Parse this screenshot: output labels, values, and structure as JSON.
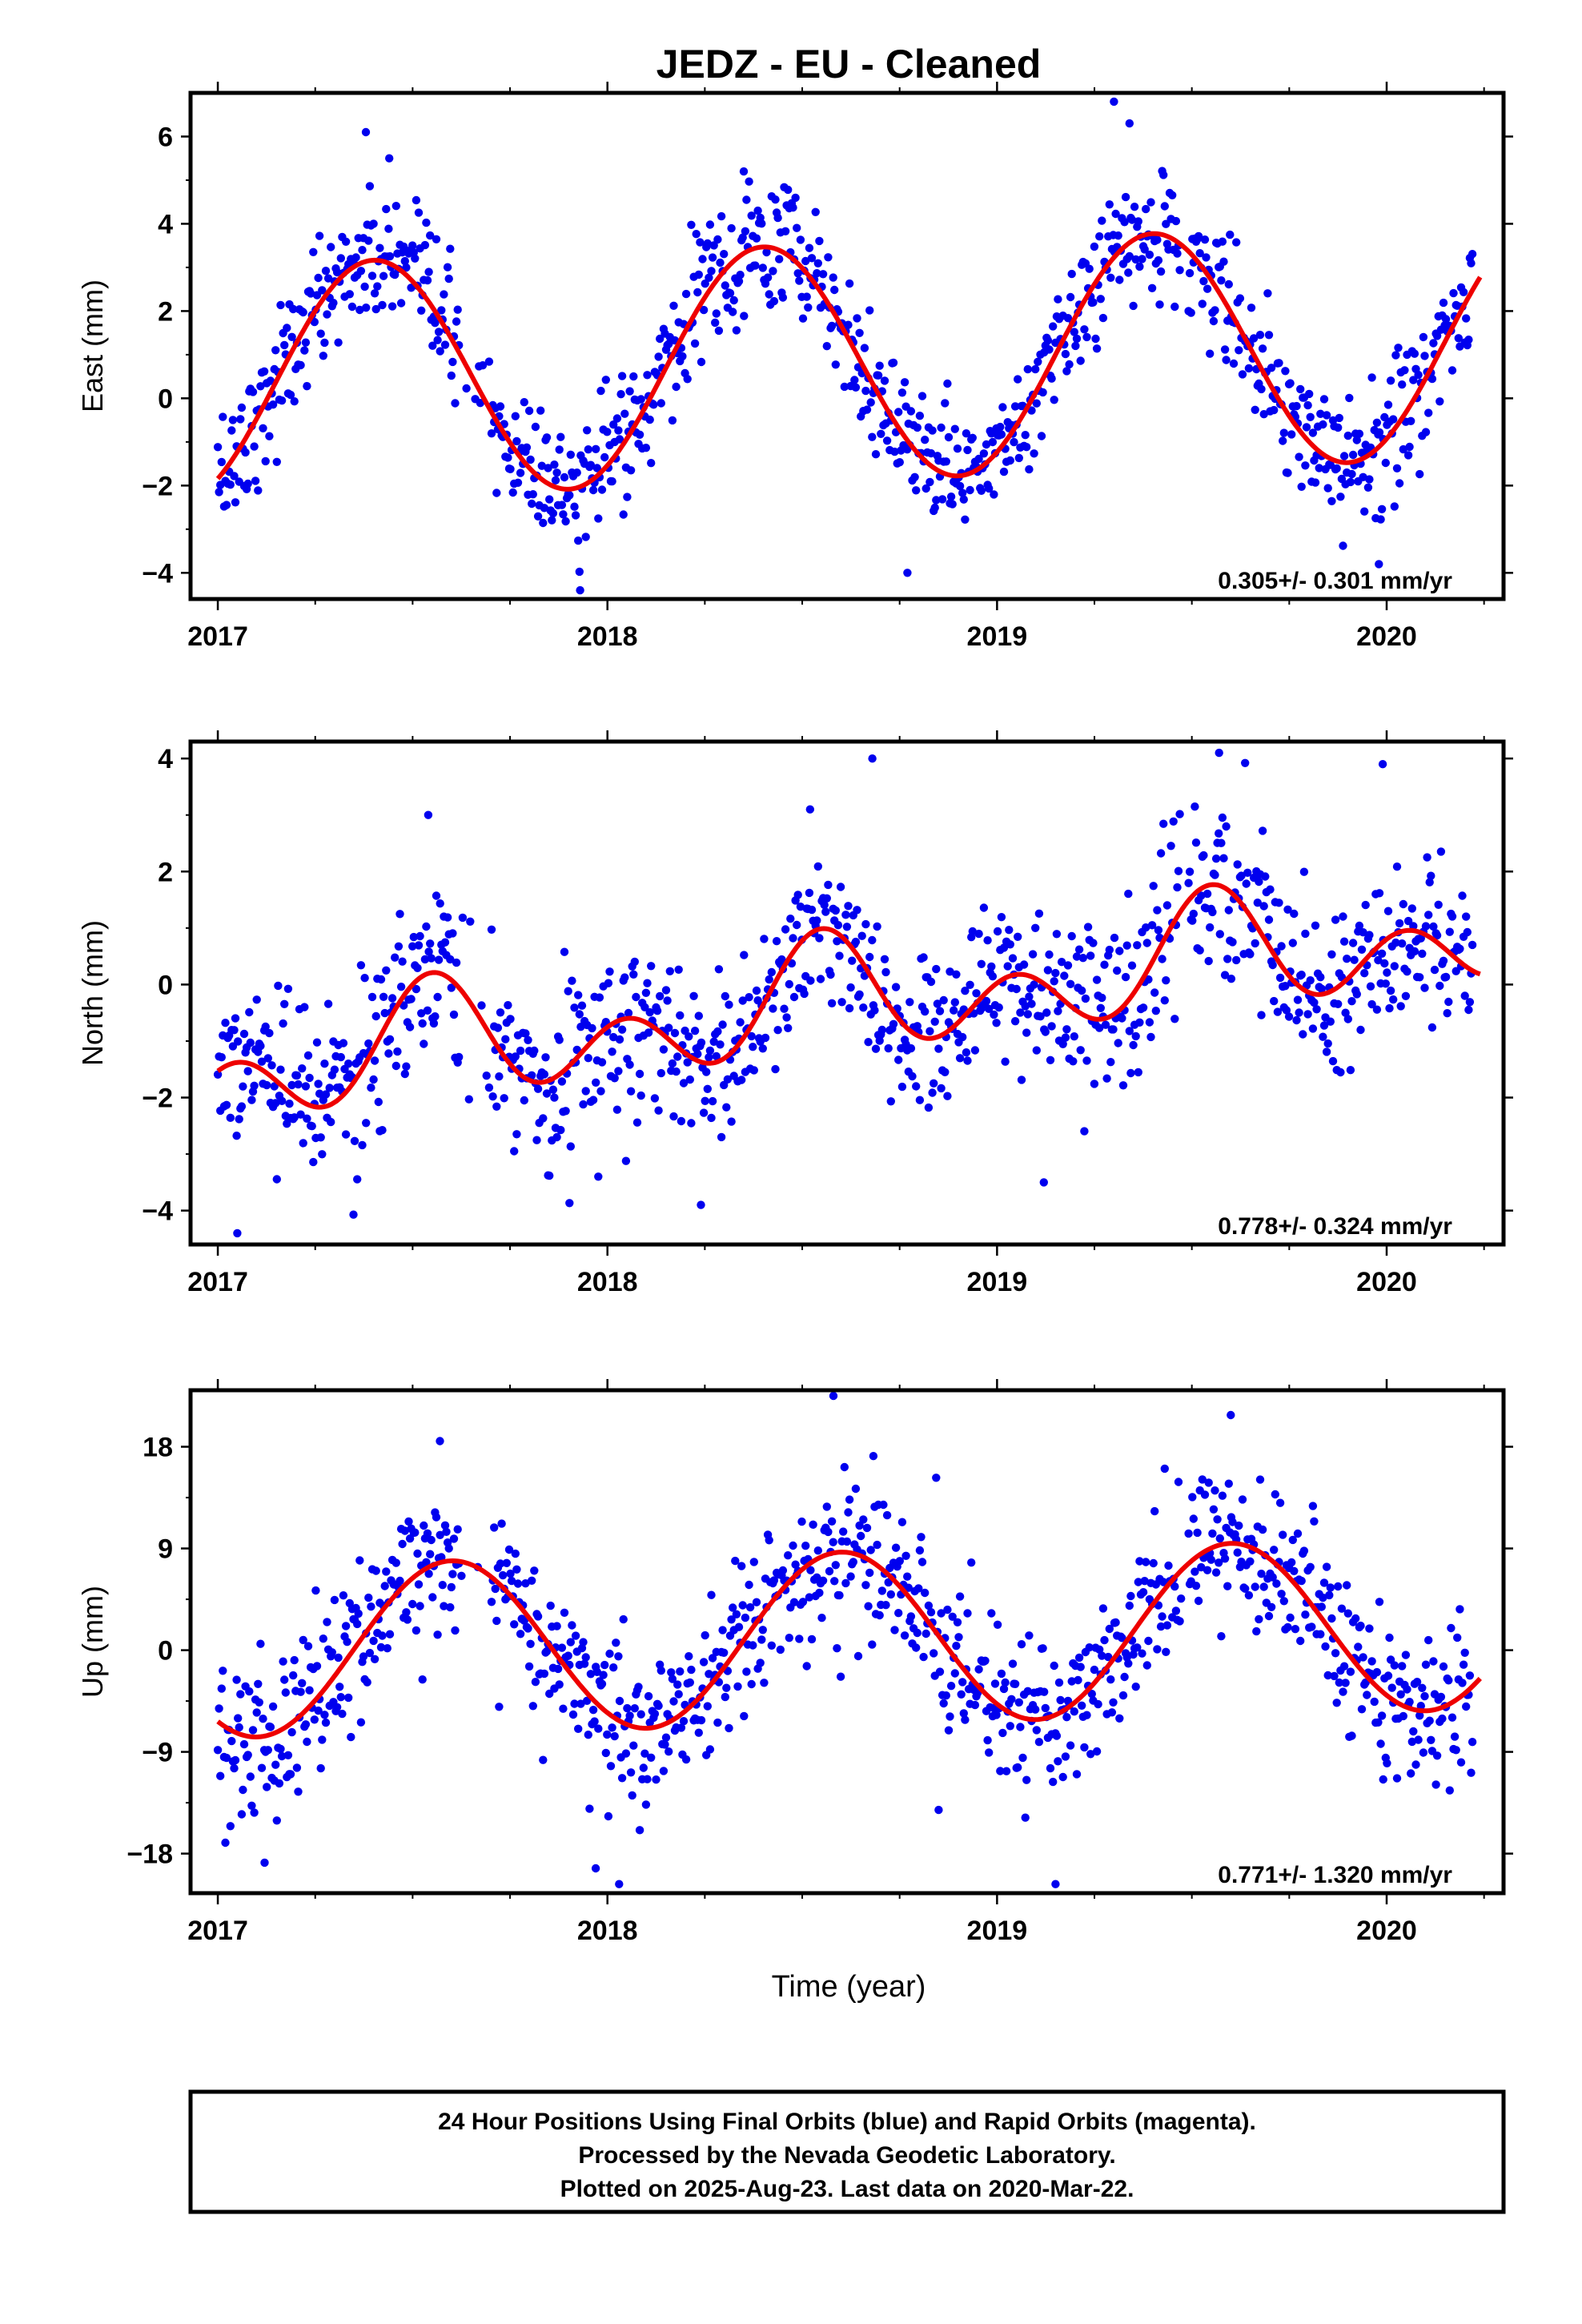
{
  "title": "JEDZ  - EU - Cleaned",
  "xlabel": "Time (year)",
  "caption": [
    "24 Hour Positions Using Final Orbits (blue) and Rapid Orbits (magenta).",
    "Processed by the Nevada Geodetic Laboratory.",
    "Plotted on 2025-Aug-23. Last data on 2020-Mar-22."
  ],
  "colors": {
    "points": "#0000ee",
    "fit": "#ee0000",
    "frame": "#000000"
  },
  "chart_data": [
    {
      "type": "scatter",
      "ylabel": "East (mm)",
      "rate": "0.305+/- 0.301 mm/yr",
      "xlim": [
        2016.93,
        2020.3
      ],
      "ylim": [
        -4.6,
        7.0
      ],
      "yticks": [
        -4,
        -2,
        0,
        2,
        4,
        6
      ],
      "xticks": [
        2017,
        2018,
        2019,
        2020
      ],
      "fit": {
        "offset": 0.8,
        "rate": 0.305,
        "t0": 2018.5,
        "annual_amp": 2.7,
        "annual_peak": 2017.4,
        "semi_amp": 0.0,
        "semi_peak": 2017.4
      },
      "noise_sd": 0.75,
      "outliers": [
        [
          2017.38,
          6.1
        ],
        [
          2017.44,
          5.5
        ],
        [
          2018.35,
          5.2
        ],
        [
          2019.3,
          6.8
        ],
        [
          2019.34,
          6.3
        ],
        [
          2017.93,
          -4.4
        ],
        [
          2018.77,
          -4.0
        ],
        [
          2019.98,
          -3.8
        ]
      ]
    },
    {
      "type": "scatter",
      "ylabel": "North (mm)",
      "rate": "0.778+/- 0.324 mm/yr",
      "xlim": [
        2016.93,
        2020.3
      ],
      "ylim": [
        -4.6,
        4.3
      ],
      "yticks": [
        -4,
        -2,
        0,
        2,
        4
      ],
      "xticks": [
        2017,
        2018,
        2019,
        2020
      ],
      "fit": {
        "offset": -0.4,
        "rate": 0.778,
        "t0": 2018.5,
        "annual_amp": 0.6,
        "annual_peak": 2017.55,
        "semi_amp": 0.75,
        "semi_peak": 2017.55
      },
      "noise_sd": 0.75,
      "outliers": [
        [
          2017.54,
          3.0
        ],
        [
          2018.52,
          3.1
        ],
        [
          2018.68,
          4.0
        ],
        [
          2019.57,
          4.1
        ],
        [
          2019.99,
          3.9
        ],
        [
          2017.05,
          -4.4
        ],
        [
          2018.24,
          -3.9
        ],
        [
          2019.12,
          -3.5
        ]
      ]
    },
    {
      "type": "scatter",
      "ylabel": "Up (mm)",
      "rate": "0.771+/- 1.320 mm/yr",
      "xlim": [
        2016.93,
        2020.3
      ],
      "ylim": [
        -21.5,
        23.0
      ],
      "yticks": [
        -18,
        -9,
        0,
        9,
        18
      ],
      "xticks": [
        2017,
        2018,
        2019,
        2020
      ],
      "fit": {
        "offset": 1.0,
        "rate": 0.771,
        "t0": 2018.5,
        "annual_amp": 7.6,
        "annual_peak": 2017.6,
        "semi_amp": 0.0,
        "semi_peak": 2017.6
      },
      "noise_sd": 3.6,
      "outliers": [
        [
          2017.57,
          18.5
        ],
        [
          2018.58,
          22.5
        ],
        [
          2019.6,
          20.8
        ],
        [
          2017.12,
          -18.8
        ],
        [
          2017.97,
          -19.3
        ],
        [
          2018.03,
          -20.7
        ],
        [
          2019.15,
          -20.7
        ]
      ]
    }
  ]
}
